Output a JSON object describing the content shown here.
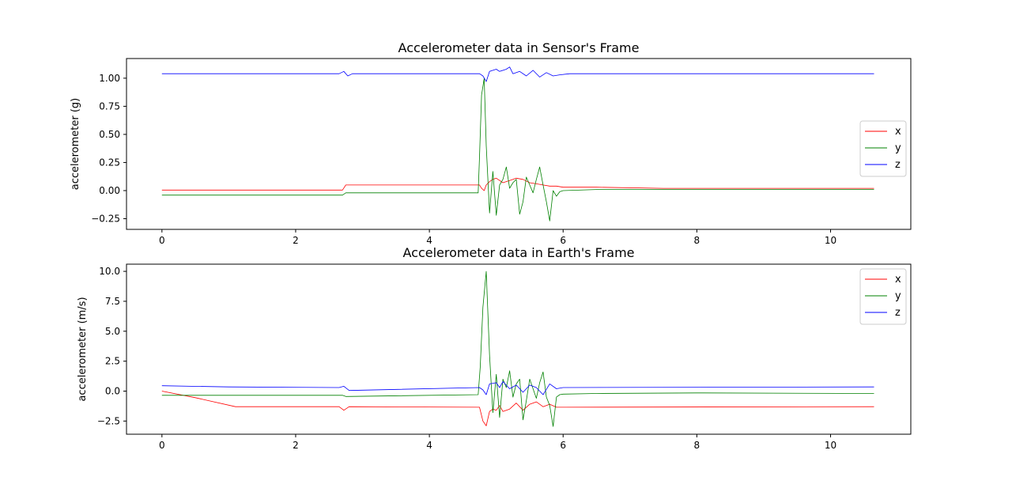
{
  "chart_data": [
    {
      "type": "line",
      "title": "Accelerometer data in Sensor's Frame",
      "xlabel": "",
      "ylabel": "accelerometer (g)",
      "xlim": [
        -0.53,
        11.2
      ],
      "ylim": [
        -0.345,
        1.175
      ],
      "xticks": [
        0,
        2,
        4,
        6,
        8,
        10
      ],
      "yticks": [
        -0.25,
        0.0,
        0.25,
        0.5,
        0.75,
        1.0
      ],
      "ytick_labels": [
        "−0.25",
        "0.00",
        "0.25",
        "0.50",
        "0.75",
        "1.00"
      ],
      "xtick_labels": [
        "0",
        "2",
        "4",
        "6",
        "8",
        "10"
      ],
      "grid": false,
      "legend_position": "center-right",
      "series": [
        {
          "name": "x",
          "color": "#ff0000",
          "x": [
            0,
            2.7,
            2.75,
            4.75,
            4.78,
            4.82,
            4.85,
            4.9,
            4.95,
            5.0,
            5.1,
            5.2,
            5.3,
            5.4,
            5.5,
            5.6,
            5.7,
            5.8,
            5.9,
            6.0,
            6.5,
            7.5,
            8.5,
            10.65
          ],
          "y": [
            0.005,
            0.005,
            0.05,
            0.05,
            0.02,
            0.0,
            0.05,
            0.08,
            0.1,
            0.11,
            0.07,
            0.09,
            0.11,
            0.1,
            0.07,
            0.06,
            0.05,
            0.04,
            0.04,
            0.03,
            0.03,
            0.02,
            0.02,
            0.02
          ]
        },
        {
          "name": "y",
          "color": "#008000",
          "x": [
            0,
            2.7,
            2.75,
            4.73,
            4.75,
            4.78,
            4.82,
            4.85,
            4.9,
            4.95,
            5.0,
            5.05,
            5.1,
            5.15,
            5.2,
            5.25,
            5.3,
            5.35,
            5.4,
            5.45,
            5.5,
            5.55,
            5.6,
            5.65,
            5.7,
            5.75,
            5.8,
            5.85,
            5.9,
            5.95,
            6.0,
            6.5,
            7.0,
            8.0,
            9.0,
            10.65
          ],
          "y": [
            -0.04,
            -0.04,
            -0.02,
            -0.02,
            0.3,
            0.85,
            1.0,
            0.4,
            -0.2,
            0.17,
            -0.22,
            0.05,
            0.1,
            0.21,
            0.02,
            0.07,
            0.1,
            -0.21,
            -0.1,
            0.12,
            0.05,
            -0.02,
            0.1,
            0.21,
            0.05,
            -0.1,
            -0.27,
            0.0,
            -0.05,
            -0.01,
            0.0,
            0.01,
            0.01,
            0.01,
            0.01,
            0.01
          ]
        },
        {
          "name": "z",
          "color": "#0000ff",
          "x": [
            0,
            2.65,
            2.72,
            2.78,
            2.85,
            4.75,
            4.8,
            4.85,
            4.9,
            5.0,
            5.05,
            5.15,
            5.2,
            5.25,
            5.35,
            5.45,
            5.55,
            5.65,
            5.75,
            5.85,
            5.95,
            6.1,
            10.65
          ],
          "y": [
            1.04,
            1.04,
            1.06,
            1.02,
            1.04,
            1.04,
            1.02,
            0.97,
            1.06,
            1.08,
            1.06,
            1.08,
            1.1,
            1.04,
            1.06,
            1.02,
            1.07,
            1.01,
            1.05,
            1.02,
            1.03,
            1.04,
            1.04
          ]
        }
      ]
    },
    {
      "type": "line",
      "title": "Accelerometer data in Earth's Frame",
      "xlabel": "",
      "ylabel": "accelerometer (m/s)",
      "xlim": [
        -0.53,
        11.2
      ],
      "ylim": [
        -3.6,
        10.6
      ],
      "xticks": [
        0,
        2,
        4,
        6,
        8,
        10
      ],
      "yticks": [
        -2.5,
        0.0,
        2.5,
        5.0,
        7.5,
        10.0
      ],
      "ytick_labels": [
        "−2.5",
        "0.0",
        "2.5",
        "5.0",
        "7.5",
        "10.0"
      ],
      "xtick_labels": [
        "0",
        "2",
        "4",
        "6",
        "8",
        "10"
      ],
      "grid": false,
      "legend_position": "top-right",
      "series": [
        {
          "name": "x",
          "color": "#ff0000",
          "x": [
            0,
            0.5,
            1.1,
            2.65,
            2.72,
            2.8,
            4.75,
            4.8,
            4.85,
            4.9,
            4.95,
            5.0,
            5.05,
            5.1,
            5.2,
            5.3,
            5.4,
            5.5,
            5.6,
            5.7,
            5.8,
            5.9,
            6.0,
            10.65
          ],
          "y": [
            0.0,
            -0.55,
            -1.3,
            -1.3,
            -1.6,
            -1.3,
            -1.35,
            -2.5,
            -2.9,
            -1.7,
            -1.5,
            -1.6,
            -1.2,
            -1.7,
            -1.5,
            -1.0,
            -1.6,
            -1.1,
            -0.9,
            -1.3,
            -1.1,
            -1.35,
            -1.35,
            -1.3
          ]
        },
        {
          "name": "y",
          "color": "#008000",
          "x": [
            0,
            2.7,
            2.75,
            4.73,
            4.76,
            4.8,
            4.85,
            4.9,
            4.95,
            5.0,
            5.05,
            5.1,
            5.15,
            5.2,
            5.25,
            5.3,
            5.35,
            5.4,
            5.45,
            5.5,
            5.55,
            5.6,
            5.65,
            5.7,
            5.75,
            5.8,
            5.85,
            5.9,
            5.95,
            6.0,
            6.5,
            8.0,
            10.65
          ],
          "y": [
            -0.35,
            -0.35,
            -0.45,
            -0.3,
            2.0,
            7.0,
            10.0,
            3.0,
            -1.8,
            1.4,
            -2.2,
            1.0,
            0.3,
            1.7,
            -0.5,
            0.6,
            1.0,
            -2.4,
            -0.8,
            1.0,
            0.2,
            -0.6,
            0.7,
            1.6,
            -0.5,
            -1.2,
            -2.95,
            -0.5,
            -0.3,
            -0.25,
            -0.2,
            -0.15,
            -0.2
          ]
        },
        {
          "name": "z",
          "color": "#0000ff",
          "x": [
            0,
            1.0,
            2.65,
            2.72,
            2.8,
            4.75,
            4.8,
            4.85,
            4.9,
            5.0,
            5.05,
            5.1,
            5.2,
            5.3,
            5.4,
            5.5,
            5.6,
            5.7,
            5.8,
            5.9,
            6.0,
            10.65
          ],
          "y": [
            0.45,
            0.35,
            0.3,
            0.4,
            0.05,
            0.3,
            0.1,
            -0.3,
            0.6,
            0.7,
            0.3,
            0.8,
            0.2,
            0.5,
            -0.1,
            0.5,
            0.3,
            -0.3,
            0.6,
            0.2,
            0.3,
            0.35
          ]
        }
      ]
    }
  ]
}
